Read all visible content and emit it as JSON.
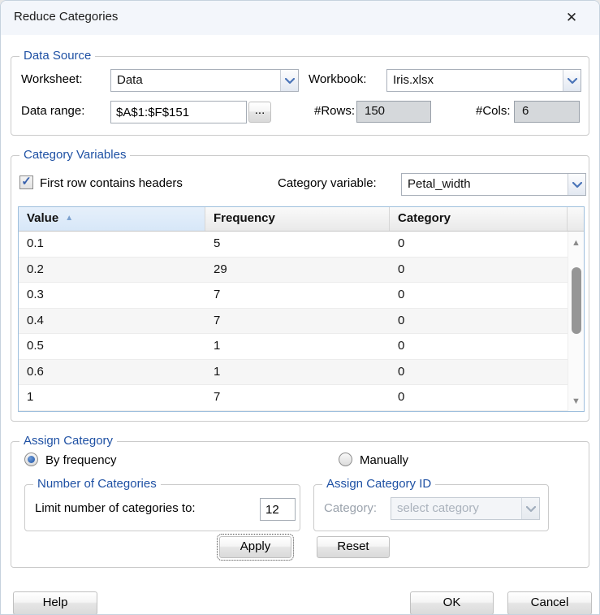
{
  "dialog": {
    "title": "Reduce Categories",
    "close_glyph": "✕"
  },
  "data_source": {
    "label": "Data Source",
    "worksheet_label": "Worksheet:",
    "worksheet_value": "Data",
    "workbook_label": "Workbook:",
    "workbook_value": "Iris.xlsx",
    "data_range_label": "Data range:",
    "data_range_value": "$A$1:$F$151",
    "browse_label": "...",
    "rows_label": "#Rows:",
    "rows_value": "150",
    "cols_label": "#Cols:",
    "cols_value": "6"
  },
  "category_variables": {
    "label": "Category Variables",
    "first_row_checkbox_label": "First row contains headers",
    "first_row_checked": true,
    "check_glyph": "✓",
    "category_variable_label": "Category variable:",
    "category_variable_value": "Petal_width",
    "table": {
      "columns": [
        "Value",
        "Frequency",
        "Category"
      ],
      "sort_column": "Value",
      "sort_direction": "asc",
      "sort_glyph": "▲",
      "rows": [
        [
          "0.1",
          "5",
          "0"
        ],
        [
          "0.2",
          "29",
          "0"
        ],
        [
          "0.3",
          "7",
          "0"
        ],
        [
          "0.4",
          "7",
          "0"
        ],
        [
          "0.5",
          "1",
          "0"
        ],
        [
          "0.6",
          "1",
          "0"
        ],
        [
          "1",
          "7",
          "0"
        ]
      ]
    },
    "scrollbar": {
      "up_glyph": "▲",
      "down_glyph": "▼"
    }
  },
  "assign_category": {
    "label": "Assign Category",
    "by_frequency_label": "By frequency",
    "by_frequency_selected": true,
    "manually_label": "Manually",
    "manually_selected": false,
    "number_of_categories": {
      "label": "Number of Categories",
      "limit_label": "Limit number of categories to:",
      "limit_value": "12",
      "apply_label": "Apply"
    },
    "assign_category_id": {
      "label": "Assign Category ID",
      "category_label": "Category:",
      "category_value": "select category",
      "disabled": true,
      "reset_label": "Reset"
    }
  },
  "footer": {
    "help_label": "Help",
    "ok_label": "OK",
    "cancel_label": "Cancel"
  },
  "colors": {
    "group_label": "#1f51a4",
    "accent_chevron": "#4a74b8",
    "table_border": "#9ebfdd",
    "sorted_header_bg": "#d7e7f8",
    "readonly_bg": "#d5d8db",
    "titlebar_bg": "#f3f6fb"
  }
}
